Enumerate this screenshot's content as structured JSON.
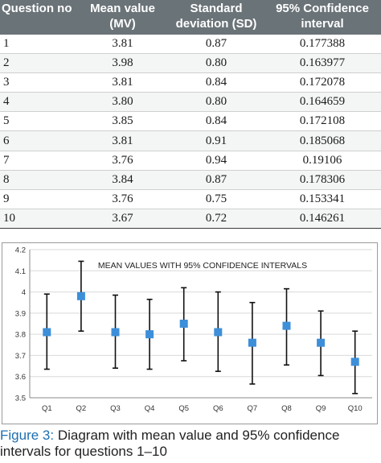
{
  "table": {
    "headers": [
      "Question no",
      "Mean value (MV)",
      "Standard deviation (SD)",
      "95% Confidence interval"
    ],
    "rows": [
      [
        "1",
        "3.81",
        "0.87",
        "0.177388"
      ],
      [
        "2",
        "3.98",
        "0.80",
        "0.163977"
      ],
      [
        "3",
        "3.81",
        "0.84",
        "0.172078"
      ],
      [
        "4",
        "3.80",
        "0.80",
        "0.164659"
      ],
      [
        "5",
        "3.85",
        "0.84",
        "0.172108"
      ],
      [
        "6",
        "3.81",
        "0.91",
        "0.185068"
      ],
      [
        "7",
        "3.76",
        "0.94",
        "0.19106"
      ],
      [
        "8",
        "3.84",
        "0.87",
        "0.178306"
      ],
      [
        "9",
        "3.76",
        "0.75",
        "0.153341"
      ],
      [
        "10",
        "3.67",
        "0.72",
        "0.146261"
      ]
    ]
  },
  "chart_data": {
    "type": "scatter",
    "title": "MEAN VALUES WITH  95% CONFIDENCE INTERVALS",
    "categories": [
      "Q1",
      "Q2",
      "Q3",
      "Q4",
      "Q5",
      "Q6",
      "Q7",
      "Q8",
      "Q9",
      "Q10"
    ],
    "values": [
      3.81,
      3.98,
      3.81,
      3.8,
      3.85,
      3.81,
      3.76,
      3.84,
      3.76,
      3.67
    ],
    "error_low": [
      3.635,
      3.815,
      3.64,
      3.635,
      3.675,
      3.625,
      3.565,
      3.655,
      3.605,
      3.52
    ],
    "error_high": [
      3.99,
      4.145,
      3.985,
      3.965,
      4.02,
      4.0,
      3.95,
      4.015,
      3.91,
      3.815
    ],
    "ylim": [
      3.5,
      4.2
    ],
    "yticks": [
      "3.5",
      "3.6",
      "3.7",
      "3.8",
      "3.9",
      "4",
      "4.1",
      "4.2"
    ],
    "grid": true,
    "marker_color": "#3d8fd9",
    "errorbar_color": "#111111",
    "grid_color": "#d9d9d9"
  },
  "caption": {
    "label": "Figure 3:",
    "text": " Diagram with mean value and 95% confidence intervals for questions 1–10"
  }
}
